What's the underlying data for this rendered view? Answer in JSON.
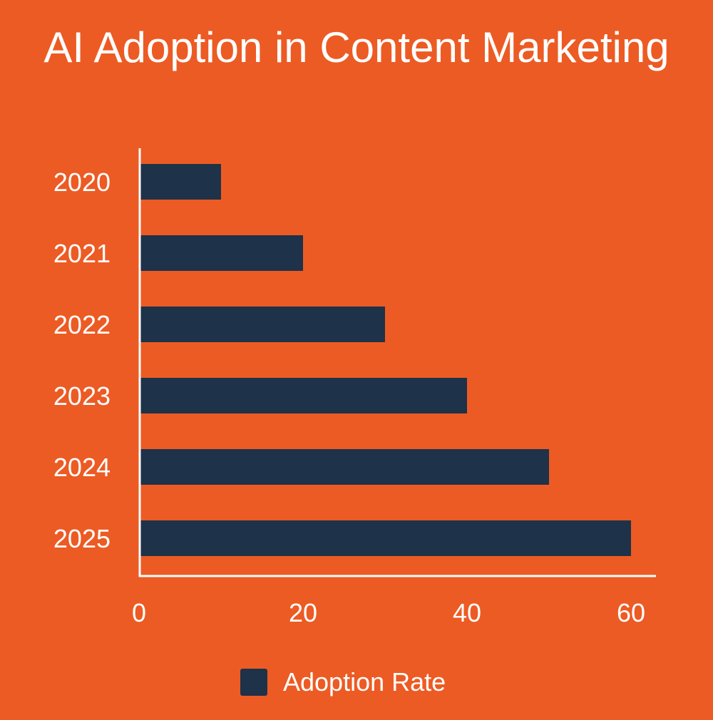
{
  "chart_data": {
    "type": "bar",
    "orientation": "horizontal",
    "title": "AI Adoption in Content Marketing",
    "categories": [
      "2020",
      "2021",
      "2022",
      "2023",
      "2024",
      "2025"
    ],
    "series": [
      {
        "name": "Adoption Rate",
        "values": [
          10,
          20,
          30,
          40,
          50,
          60
        ],
        "color": "#1E3249"
      }
    ],
    "xlim": [
      0,
      60
    ],
    "xticks": [
      "0",
      "20",
      "40",
      "60"
    ],
    "xtick_values": [
      0,
      20,
      40,
      60
    ],
    "grid": false,
    "legend": "bottom",
    "background": "#EC5B24",
    "text_color": "#FFFFFF"
  }
}
